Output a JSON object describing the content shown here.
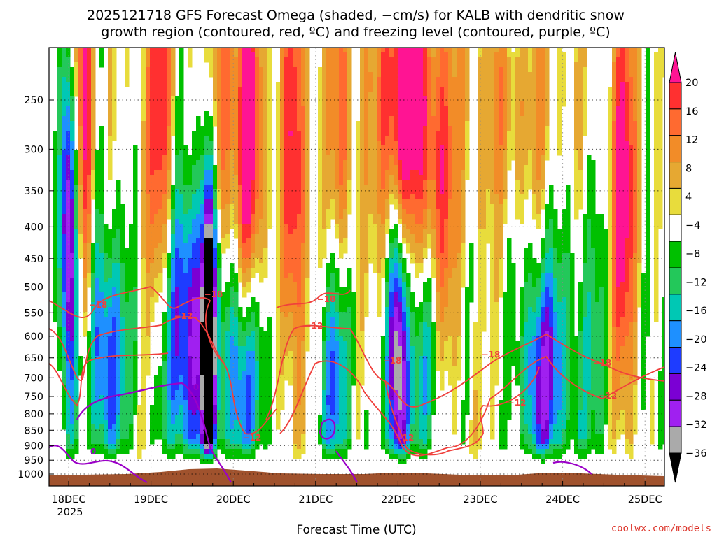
{
  "chart_data": {
    "type": "heatmap",
    "title_lines": [
      "2025121718 GFS Forecast Omega (shaded, −cm/s) for KALB with dendritic snow",
      "growth region (contoured, red, ºC) and freezing level (contoured, purple, ºC)"
    ],
    "xlabel": "Forecast Time (UTC)",
    "ylabel": "",
    "x_ticks": [
      "18DEC",
      "19DEC",
      "20DEC",
      "21DEC",
      "22DEC",
      "23DEC",
      "24DEC",
      "25DEC"
    ],
    "x_year_label": "2025",
    "y_ticks": [
      250,
      300,
      350,
      400,
      450,
      500,
      550,
      600,
      650,
      700,
      750,
      800,
      850,
      900,
      950,
      1000
    ],
    "ylim": [
      1000,
      200
    ],
    "colorbar": {
      "labels": [
        "20",
        "16",
        "12",
        "8",
        "4",
        "−4",
        "−8",
        "−12",
        "−16",
        "−20",
        "−24",
        "−28",
        "−32",
        "−36"
      ],
      "colors": [
        "#ff1493",
        "#ff3030",
        "#ff6a30",
        "#f28c28",
        "#e6a832",
        "#e8dc3c",
        "#ffffff",
        "#00c000",
        "#23c85a",
        "#00c8b4",
        "#1e90ff",
        "#1e3cff",
        "#7b00d4",
        "#a020f0",
        "#aaaaaa",
        "#000000"
      ]
    },
    "contours": {
      "dgz_red": {
        "levels": [
          "−18",
          "−12"
        ],
        "color": "#f0403c"
      },
      "freezing_purple": {
        "levels": [
          "0"
        ],
        "color": "#9b00c8"
      }
    },
    "terrain_color": "#a0522d",
    "credit": "coolwx.com/models"
  }
}
